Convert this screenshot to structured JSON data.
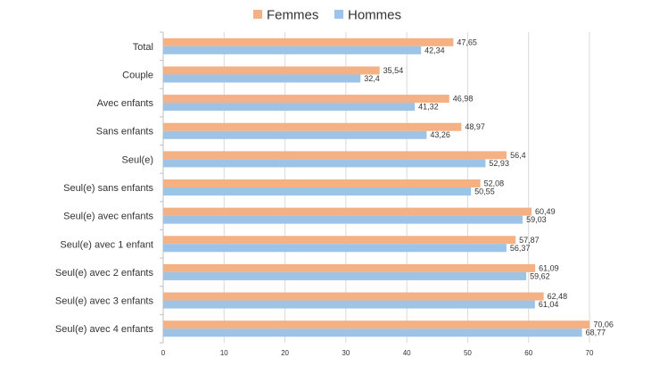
{
  "chart_data": {
    "type": "bar",
    "orientation": "horizontal",
    "title": "",
    "xlabel": "",
    "ylabel": "",
    "categories": [
      "Total",
      "Couple",
      "Avec enfants",
      "Sans enfants",
      "Seul(e)",
      "Seul(e) sans enfants",
      "Seul(e) avec enfants",
      "Seul(e) avec 1 enfant",
      "Seul(e) avec 2 enfants",
      "Seul(e) avec 3 enfants",
      "Seul(e) avec 4 enfants"
    ],
    "series": [
      {
        "name": "Femmes",
        "color": "#F4B183",
        "values": [
          47.65,
          35.54,
          46.98,
          48.97,
          56.4,
          52.08,
          60.49,
          57.87,
          61.09,
          62.48,
          70.06
        ],
        "labels": [
          "47,65",
          "35,54",
          "46,98",
          "48,97",
          "56,4",
          "52,08",
          "60,49",
          "57,87",
          "61,09",
          "62,48",
          "70,06"
        ]
      },
      {
        "name": "Hommes",
        "color": "#9DC3E6",
        "values": [
          42.34,
          32.4,
          41.32,
          43.26,
          52.93,
          50.55,
          59.03,
          56.37,
          59.62,
          61.04,
          68.77
        ],
        "labels": [
          "42,34",
          "32,4",
          "41,32",
          "43,26",
          "52,93",
          "50,55",
          "59,03",
          "56,37",
          "59,62",
          "61,04",
          "68,77"
        ]
      }
    ],
    "xlim": [
      0,
      70
    ],
    "xticks": [
      0,
      10,
      20,
      30,
      40,
      50,
      60,
      70
    ],
    "grid": true,
    "legend_position": "top-center"
  }
}
